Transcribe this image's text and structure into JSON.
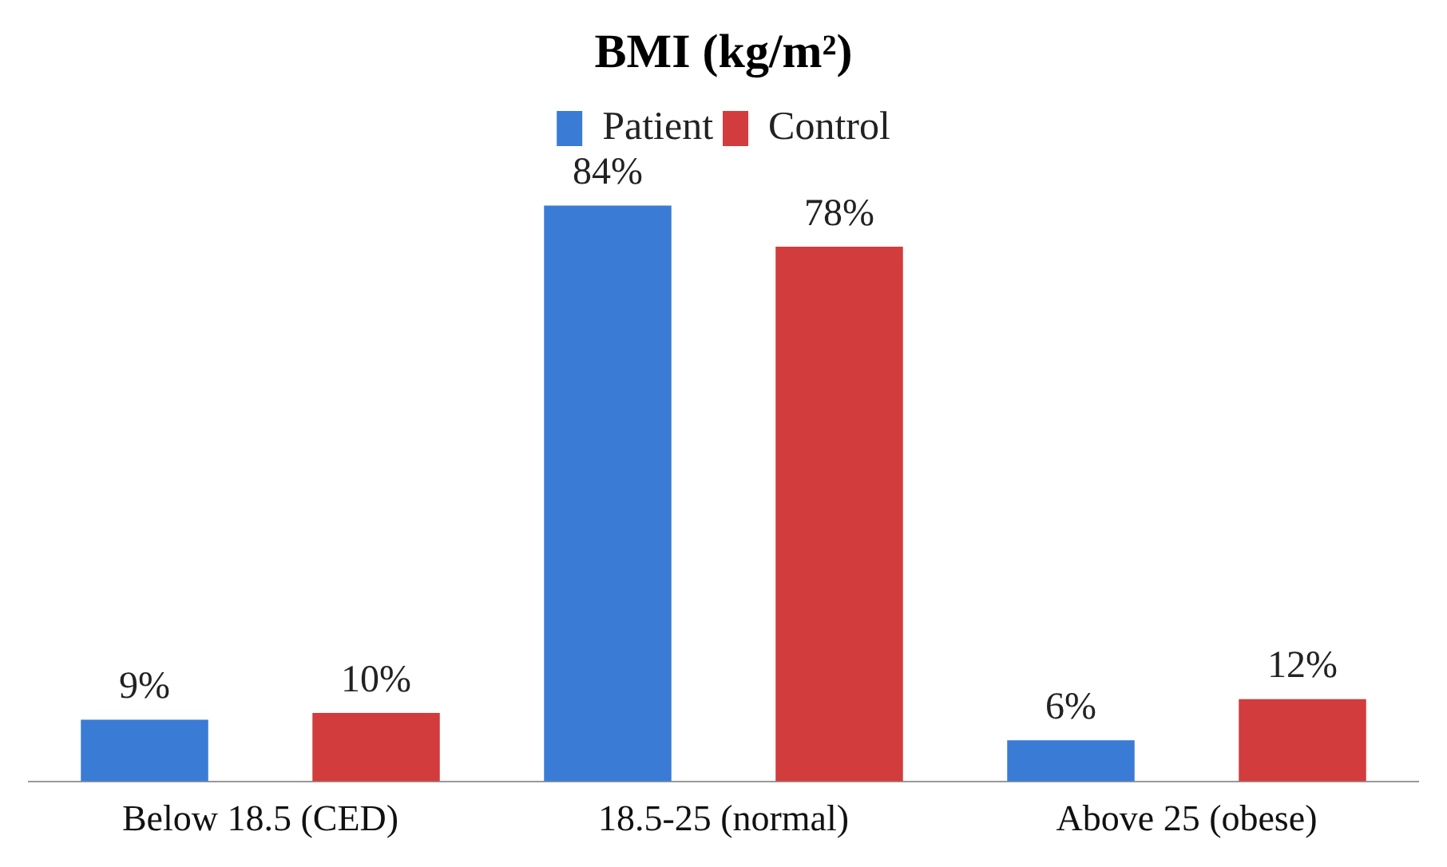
{
  "chart_data": {
    "type": "bar",
    "title": "BMI (kg/m²)",
    "categories": [
      "Below 18.5 (CED)",
      "18.5-25 (normal)",
      "Above 25 (obese)"
    ],
    "series": [
      {
        "name": "Patient",
        "color": "#3a7bd5",
        "values": [
          9,
          84,
          6
        ],
        "value_labels": [
          "9%",
          "84%",
          "6%"
        ]
      },
      {
        "name": "Control",
        "color": "#d23c3c",
        "values": [
          10,
          78,
          12
        ],
        "value_labels": [
          "10%",
          "78%",
          "12%"
        ]
      }
    ],
    "legend": "top"
  }
}
